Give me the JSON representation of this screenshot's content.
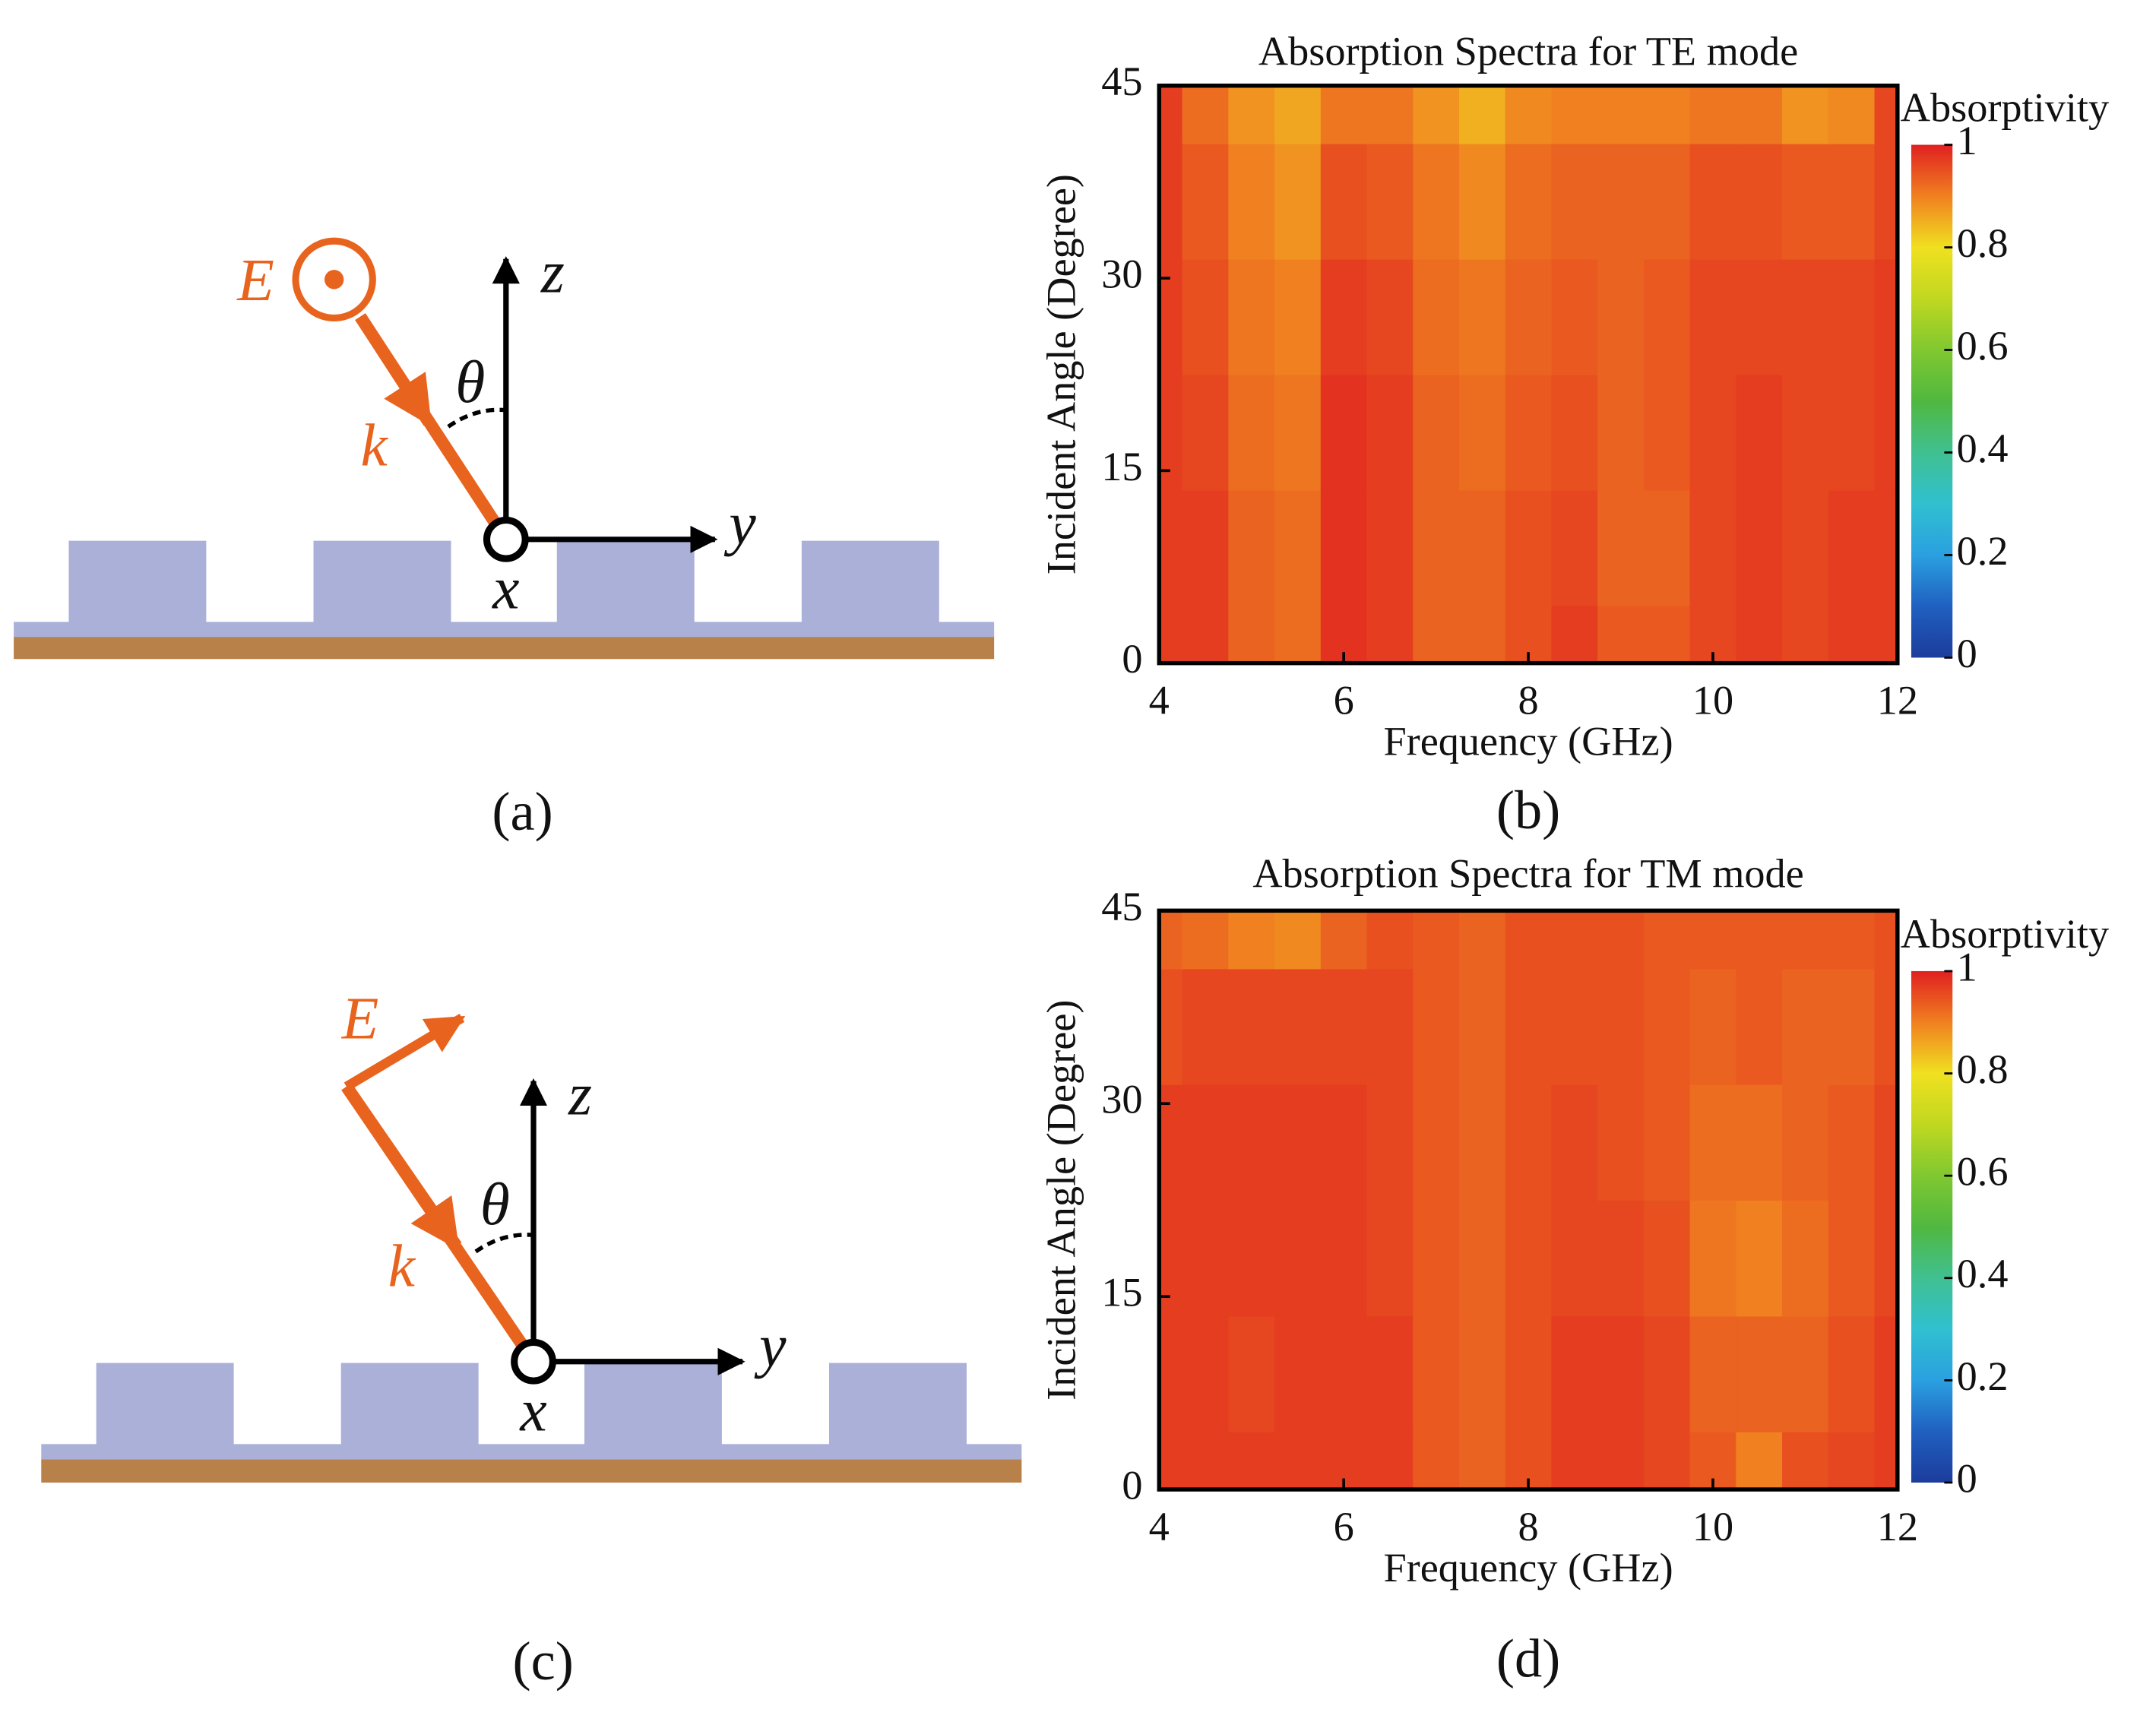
{
  "diagrams": [
    {
      "E": "E",
      "k": "k",
      "theta": "θ",
      "z": "z",
      "y": "y",
      "x": "x",
      "caption": "(a)"
    },
    {
      "E": "E",
      "k": "k",
      "theta": "θ",
      "z": "z",
      "y": "y",
      "x": "x",
      "caption": "(c)"
    }
  ],
  "chart_data": [
    {
      "type": "heatmap",
      "title": "Absorption Spectra for TE mode",
      "caption": "(b)",
      "x_label": "Frequency (GHz)",
      "y_label": "Incident Angle (Degree)",
      "xlim": [
        4,
        12
      ],
      "xticks": [
        4,
        6,
        8,
        10,
        12
      ],
      "ylim": [
        0,
        45
      ],
      "yticks": [
        0,
        15,
        30,
        45
      ],
      "x": [
        4,
        4.5,
        5,
        5.5,
        6,
        6.5,
        7,
        7.5,
        8,
        8.5,
        9,
        9.5,
        10,
        10.5,
        11,
        11.5,
        12
      ],
      "y": [
        0,
        9,
        18,
        27,
        36,
        45
      ],
      "z": [
        [
          0.97,
          0.97,
          0.93,
          0.92,
          0.98,
          0.97,
          0.93,
          0.93,
          0.95,
          0.97,
          0.94,
          0.94,
          0.96,
          0.97,
          0.96,
          0.97,
          0.97
        ],
        [
          0.97,
          0.97,
          0.93,
          0.92,
          0.98,
          0.97,
          0.93,
          0.93,
          0.95,
          0.96,
          0.93,
          0.93,
          0.96,
          0.97,
          0.96,
          0.97,
          0.97
        ],
        [
          0.97,
          0.96,
          0.92,
          0.91,
          0.98,
          0.97,
          0.93,
          0.92,
          0.94,
          0.95,
          0.93,
          0.94,
          0.96,
          0.97,
          0.96,
          0.96,
          0.97
        ],
        [
          0.97,
          0.95,
          0.91,
          0.9,
          0.97,
          0.96,
          0.92,
          0.91,
          0.93,
          0.94,
          0.93,
          0.94,
          0.96,
          0.96,
          0.96,
          0.96,
          0.97
        ],
        [
          0.97,
          0.94,
          0.9,
          0.88,
          0.95,
          0.94,
          0.91,
          0.89,
          0.92,
          0.93,
          0.93,
          0.93,
          0.95,
          0.95,
          0.94,
          0.94,
          0.96
        ],
        [
          0.97,
          0.92,
          0.88,
          0.86,
          0.91,
          0.91,
          0.88,
          0.85,
          0.89,
          0.9,
          0.9,
          0.9,
          0.91,
          0.91,
          0.88,
          0.89,
          0.96
        ]
      ],
      "zlim": [
        0,
        1
      ],
      "colorbar_label": "Absorptivity",
      "colorbar_ticks": [
        0,
        0.2,
        0.4,
        0.6,
        0.8,
        1
      ],
      "colorscale": [
        "#1c3c9c",
        "#2060c0",
        "#2aa0e0",
        "#30c0d0",
        "#40c090",
        "#50b840",
        "#80c830",
        "#c0d820",
        "#f0e020",
        "#f08020",
        "#e02020"
      ]
    },
    {
      "type": "heatmap",
      "title": "Absorption Spectra for TM mode",
      "caption": "(d)",
      "x_label": "Frequency (GHz)",
      "y_label": "Incident Angle (Degree)",
      "xlim": [
        4,
        12
      ],
      "xticks": [
        4,
        6,
        8,
        10,
        12
      ],
      "ylim": [
        0,
        45
      ],
      "yticks": [
        0,
        15,
        30,
        45
      ],
      "x": [
        4,
        4.5,
        5,
        5.5,
        6,
        6.5,
        7,
        7.5,
        8,
        8.5,
        9,
        9.5,
        10,
        10.5,
        11,
        11.5,
        12
      ],
      "y": [
        0,
        9,
        18,
        27,
        36,
        45
      ],
      "z": [
        [
          0.97,
          0.97,
          0.97,
          0.97,
          0.97,
          0.97,
          0.94,
          0.93,
          0.95,
          0.97,
          0.97,
          0.96,
          0.94,
          0.9,
          0.95,
          0.96,
          0.97
        ],
        [
          0.97,
          0.97,
          0.96,
          0.97,
          0.97,
          0.97,
          0.94,
          0.93,
          0.95,
          0.97,
          0.97,
          0.96,
          0.93,
          0.93,
          0.93,
          0.95,
          0.97
        ],
        [
          0.97,
          0.97,
          0.97,
          0.97,
          0.97,
          0.96,
          0.94,
          0.93,
          0.95,
          0.96,
          0.96,
          0.95,
          0.91,
          0.9,
          0.92,
          0.94,
          0.96
        ],
        [
          0.97,
          0.97,
          0.97,
          0.97,
          0.97,
          0.96,
          0.94,
          0.93,
          0.95,
          0.96,
          0.95,
          0.94,
          0.92,
          0.92,
          0.93,
          0.94,
          0.96
        ],
        [
          0.95,
          0.96,
          0.96,
          0.96,
          0.96,
          0.96,
          0.94,
          0.93,
          0.95,
          0.95,
          0.95,
          0.94,
          0.93,
          0.94,
          0.93,
          0.93,
          0.95
        ],
        [
          0.93,
          0.92,
          0.9,
          0.89,
          0.93,
          0.95,
          0.94,
          0.93,
          0.95,
          0.95,
          0.95,
          0.94,
          0.94,
          0.94,
          0.94,
          0.94,
          0.95
        ]
      ],
      "zlim": [
        0,
        1
      ],
      "colorbar_label": "Absorptivity",
      "colorbar_ticks": [
        0,
        0.2,
        0.4,
        0.6,
        0.8,
        1
      ],
      "colorscale": [
        "#1c3c9c",
        "#2060c0",
        "#2aa0e0",
        "#30c0d0",
        "#40c090",
        "#50b840",
        "#80c830",
        "#c0d820",
        "#f0e020",
        "#f08020",
        "#e02020"
      ]
    }
  ]
}
